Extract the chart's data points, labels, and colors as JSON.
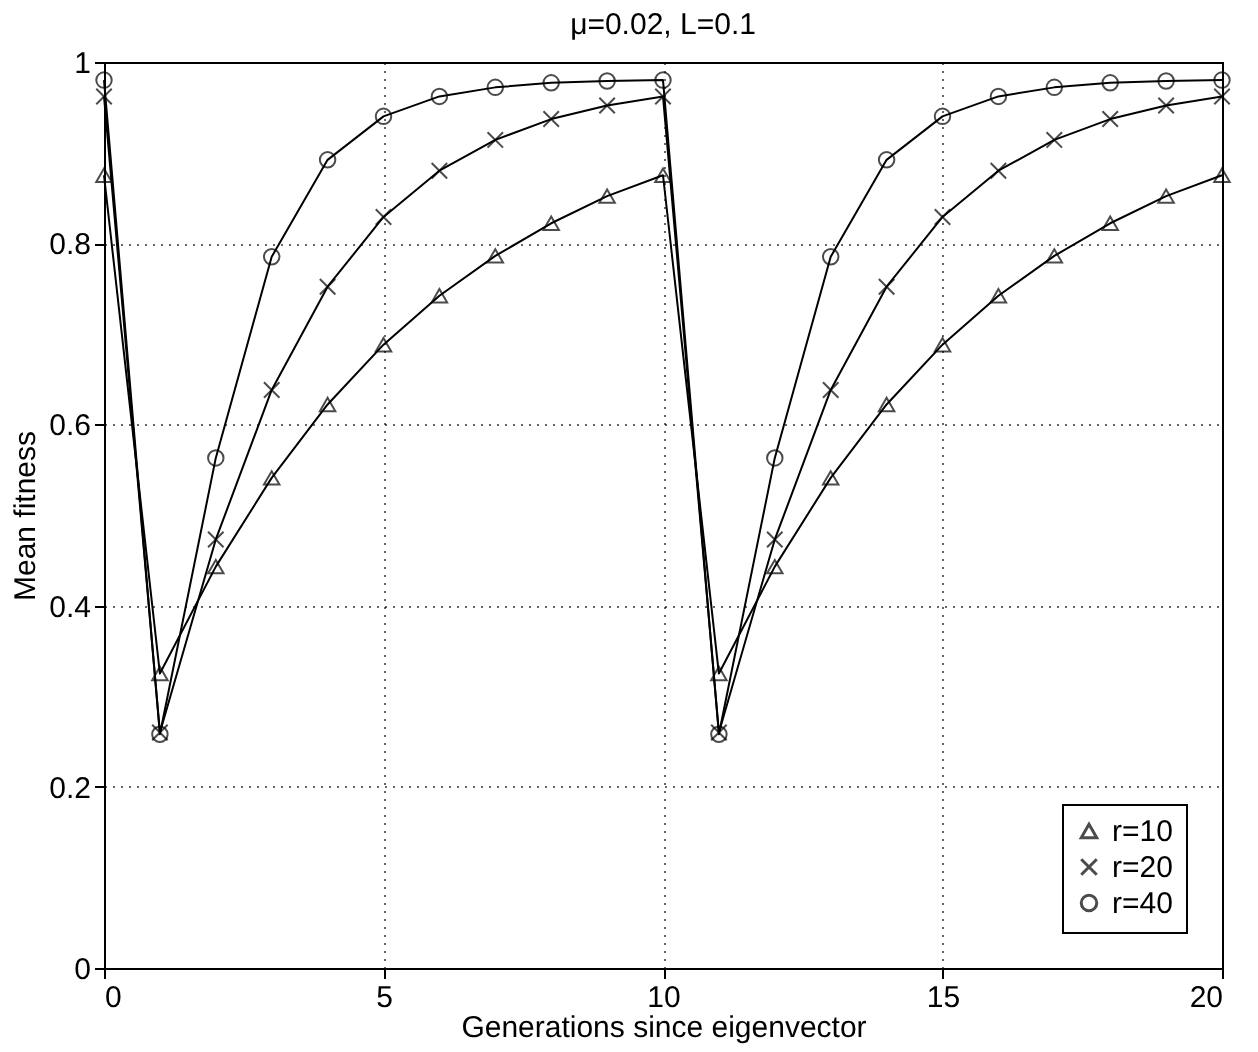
{
  "chart_data": {
    "type": "line",
    "title": "μ=0.02, L=0.1",
    "xlabel": "Generations since eigenvector",
    "ylabel": "Mean fitness",
    "x": [
      0,
      1,
      2,
      3,
      4,
      5,
      6,
      7,
      8,
      9,
      10,
      11,
      12,
      13,
      14,
      15,
      16,
      17,
      18,
      19,
      20
    ],
    "xlim": [
      0,
      20
    ],
    "xticks": [
      0,
      5,
      10,
      15,
      20
    ],
    "ylim": [
      0,
      1
    ],
    "yticks": [
      0,
      0.2,
      0.4,
      0.6,
      0.8,
      1
    ],
    "grid": true,
    "legend": "bottom right",
    "line_style": "solid",
    "series": [
      {
        "name": "r=10",
        "color": "#000000",
        "marker": "triangle",
        "values": [
          0.875,
          0.325,
          0.443,
          0.541,
          0.622,
          0.688,
          0.742,
          0.786,
          0.822,
          0.852,
          0.875,
          0.325,
          0.443,
          0.541,
          0.622,
          0.688,
          0.742,
          0.786,
          0.822,
          0.852,
          0.875
        ]
      },
      {
        "name": "r=20",
        "color": "#000000",
        "marker": "cross",
        "values": [
          0.962,
          0.26,
          0.473,
          0.638,
          0.752,
          0.829,
          0.88,
          0.914,
          0.937,
          0.952,
          0.962,
          0.26,
          0.473,
          0.638,
          0.752,
          0.829,
          0.88,
          0.914,
          0.937,
          0.952,
          0.962
        ]
      },
      {
        "name": "r=40",
        "color": "#000000",
        "marker": "circle",
        "values": [
          0.98,
          0.258,
          0.563,
          0.785,
          0.892,
          0.94,
          0.962,
          0.972,
          0.977,
          0.979,
          0.98,
          0.258,
          0.563,
          0.785,
          0.892,
          0.94,
          0.962,
          0.972,
          0.977,
          0.979,
          0.98
        ]
      }
    ]
  }
}
